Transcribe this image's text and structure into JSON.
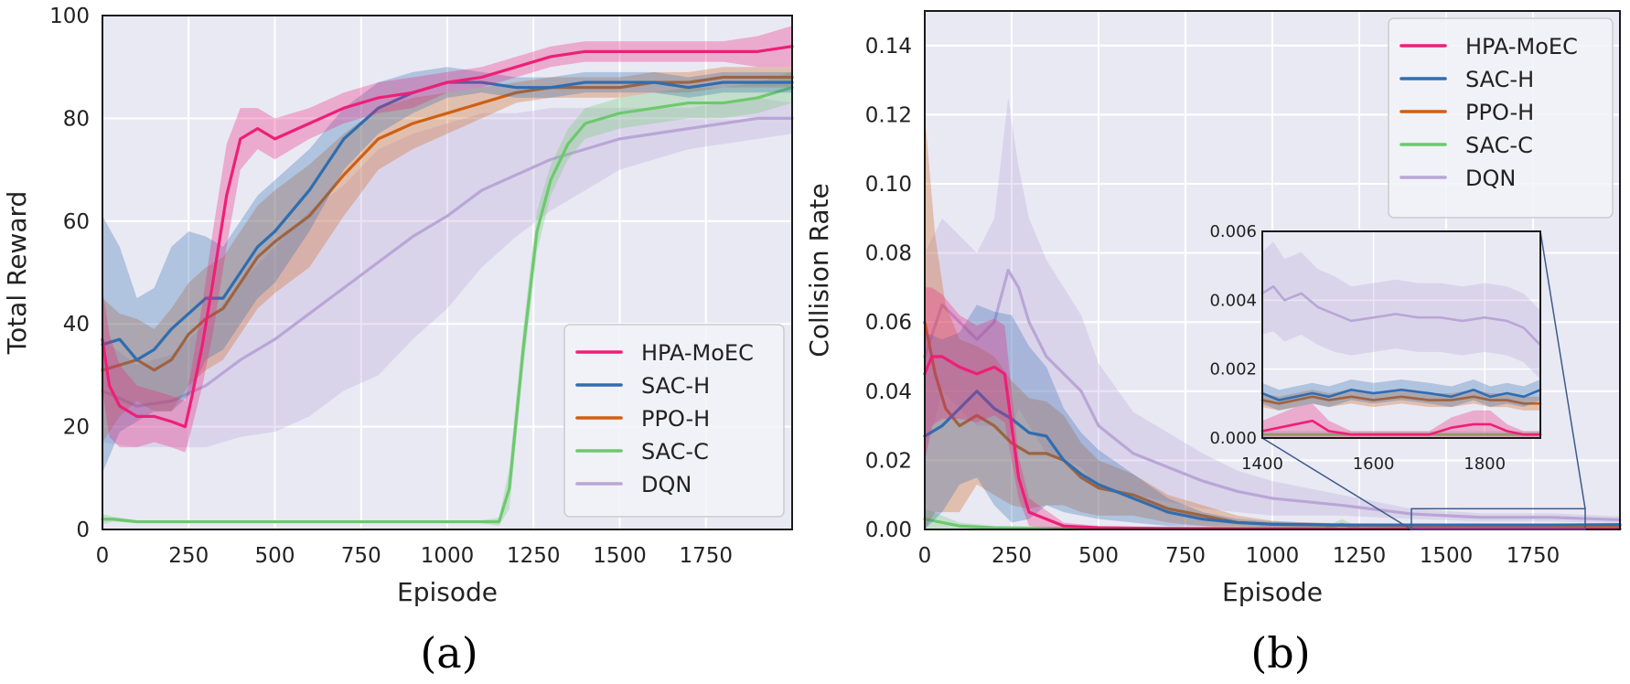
{
  "captions": [
    "(a)",
    "(b)"
  ],
  "colors": {
    "HPA-MoEC": "#ee1f77",
    "SAC-H": "#2f6db0",
    "PPO-H": "#cf5f12",
    "SAC-C": "#6cc96c",
    "DQN": "#b9a6d6",
    "panel_bg": "#e9e9f4",
    "grid": "#ffffff"
  },
  "chart_data": [
    {
      "type": "line",
      "xlabel": "Episode",
      "ylabel": "Total Reward",
      "xlim": [
        0,
        2000
      ],
      "ylim": [
        0,
        100
      ],
      "xticks": [
        0,
        250,
        500,
        750,
        1000,
        1250,
        1500,
        1750
      ],
      "yticks": [
        0,
        20,
        40,
        60,
        80,
        100
      ],
      "ytick_labels": [
        "0",
        "20",
        "40",
        "60",
        "80",
        "100"
      ],
      "grid": true,
      "legend_position": "lower-right",
      "series": [
        {
          "name": "HPA-MoEC",
          "x": [
            0,
            20,
            50,
            100,
            150,
            200,
            240,
            260,
            290,
            320,
            360,
            400,
            450,
            500,
            600,
            700,
            800,
            900,
            1000,
            1100,
            1200,
            1300,
            1400,
            1500,
            1600,
            1700,
            1800,
            1900,
            2000
          ],
          "y": [
            37,
            28,
            24,
            22,
            22,
            21,
            20,
            26,
            36,
            48,
            65,
            76,
            78,
            76,
            79,
            82,
            84,
            85,
            87,
            88,
            90,
            92,
            93,
            93,
            93,
            93,
            93,
            93,
            94
          ],
          "band": [
            10,
            10,
            8,
            6,
            5,
            5,
            5,
            6,
            8,
            10,
            10,
            6,
            4,
            4,
            3,
            3,
            3,
            3,
            2,
            2,
            2,
            2,
            2,
            2,
            2,
            2,
            2,
            3,
            4
          ]
        },
        {
          "name": "SAC-H",
          "x": [
            0,
            50,
            100,
            150,
            200,
            250,
            300,
            350,
            400,
            450,
            500,
            600,
            700,
            800,
            900,
            1000,
            1100,
            1200,
            1300,
            1400,
            1500,
            1600,
            1700,
            1800,
            1900,
            2000
          ],
          "y": [
            36,
            37,
            33,
            35,
            39,
            42,
            45,
            45,
            50,
            55,
            58,
            66,
            76,
            82,
            85,
            87,
            87,
            86,
            86,
            87,
            87,
            87,
            86,
            87,
            87,
            87
          ],
          "band": [
            25,
            18,
            12,
            12,
            16,
            16,
            12,
            10,
            10,
            10,
            10,
            8,
            6,
            5,
            4,
            3,
            2,
            2,
            2,
            2,
            2,
            2,
            2,
            2,
            2,
            2
          ]
        },
        {
          "name": "PPO-H",
          "x": [
            0,
            50,
            100,
            150,
            200,
            250,
            300,
            350,
            400,
            450,
            500,
            600,
            700,
            800,
            900,
            1000,
            1100,
            1200,
            1300,
            1400,
            1500,
            1600,
            1700,
            1800,
            1900,
            2000
          ],
          "y": [
            31,
            32,
            33,
            31,
            33,
            38,
            41,
            43,
            48,
            53,
            56,
            61,
            69,
            76,
            79,
            81,
            83,
            85,
            86,
            86,
            86,
            87,
            87,
            88,
            88,
            88
          ],
          "band": [
            14,
            10,
            8,
            8,
            10,
            10,
            10,
            10,
            10,
            10,
            10,
            10,
            8,
            6,
            5,
            4,
            3,
            2,
            2,
            2,
            2,
            2,
            2,
            2,
            2,
            2
          ]
        },
        {
          "name": "SAC-C",
          "x": [
            0,
            30,
            100,
            300,
            600,
            900,
            1100,
            1150,
            1180,
            1220,
            1260,
            1300,
            1350,
            1400,
            1450,
            1500,
            1600,
            1700,
            1800,
            1900,
            2000
          ],
          "y": [
            2,
            2,
            1.5,
            1.5,
            1.5,
            1.5,
            1.5,
            1.5,
            8,
            35,
            58,
            68,
            75,
            79,
            80,
            81,
            82,
            83,
            83,
            84,
            86
          ],
          "band": [
            1,
            0.5,
            0.3,
            0.3,
            0.3,
            0.3,
            0.3,
            0.8,
            4,
            4,
            4,
            3,
            3,
            3,
            3,
            3,
            3,
            3,
            3,
            3,
            3
          ]
        },
        {
          "name": "DQN",
          "x": [
            0,
            100,
            200,
            300,
            400,
            500,
            600,
            700,
            800,
            900,
            1000,
            1100,
            1200,
            1300,
            1400,
            1500,
            1600,
            1700,
            1800,
            1900,
            2000
          ],
          "y": [
            27,
            24,
            25,
            28,
            33,
            37,
            42,
            47,
            52,
            57,
            61,
            66,
            69,
            72,
            74,
            76,
            77,
            78,
            79,
            80,
            80
          ],
          "band": [
            10,
            8,
            9,
            12,
            15,
            18,
            20,
            20,
            22,
            20,
            18,
            15,
            12,
            10,
            8,
            6,
            5,
            4,
            4,
            4,
            3
          ]
        }
      ]
    },
    {
      "type": "line",
      "xlabel": "Episode",
      "ylabel": "Collision Rate",
      "xlim": [
        0,
        2000
      ],
      "ylim": [
        0,
        0.15
      ],
      "xticks": [
        0,
        250,
        500,
        750,
        1000,
        1250,
        1500,
        1750
      ],
      "yticks": [
        0,
        0.02,
        0.04,
        0.06,
        0.08,
        0.1,
        0.12,
        0.14
      ],
      "ytick_labels": [
        "0.00",
        "0.02",
        "0.04",
        "0.06",
        "0.08",
        "0.10",
        "0.12",
        "0.14"
      ],
      "grid": true,
      "legend_position": "upper-right",
      "series": [
        {
          "name": "HPA-MoEC",
          "x": [
            0,
            20,
            50,
            100,
            150,
            200,
            230,
            250,
            270,
            300,
            400,
            500,
            700,
            1000,
            1300,
            1600,
            2000
          ],
          "y": [
            0.045,
            0.05,
            0.05,
            0.047,
            0.045,
            0.047,
            0.045,
            0.03,
            0.015,
            0.005,
            0.001,
            0.0005,
            0.0003,
            0.0002,
            0.0002,
            0.0002,
            0.0002
          ],
          "band": [
            0.025,
            0.02,
            0.018,
            0.015,
            0.014,
            0.014,
            0.014,
            0.01,
            0.006,
            0.004,
            0.001,
            0.0005,
            0.0003,
            0.0002,
            0.0002,
            0.0002,
            0.0002
          ]
        },
        {
          "name": "SAC-H",
          "x": [
            0,
            50,
            100,
            150,
            200,
            250,
            300,
            350,
            400,
            450,
            500,
            600,
            700,
            800,
            900,
            1000,
            1200,
            1400,
            1600,
            1800,
            2000
          ],
          "y": [
            0.027,
            0.03,
            0.035,
            0.04,
            0.035,
            0.032,
            0.028,
            0.027,
            0.02,
            0.016,
            0.013,
            0.009,
            0.005,
            0.003,
            0.002,
            0.0015,
            0.0013,
            0.0013,
            0.0013,
            0.0013,
            0.0014
          ],
          "band": [
            0.03,
            0.025,
            0.022,
            0.025,
            0.028,
            0.03,
            0.025,
            0.02,
            0.015,
            0.012,
            0.01,
            0.007,
            0.004,
            0.002,
            0.001,
            0.0008,
            0.0005,
            0.0004,
            0.0004,
            0.0004,
            0.0004
          ]
        },
        {
          "name": "PPO-H",
          "x": [
            0,
            30,
            60,
            100,
            150,
            200,
            250,
            300,
            350,
            400,
            450,
            500,
            600,
            700,
            800,
            900,
            1000,
            1200,
            1400,
            1600,
            1800,
            2000
          ],
          "y": [
            0.06,
            0.045,
            0.035,
            0.03,
            0.033,
            0.03,
            0.025,
            0.022,
            0.022,
            0.02,
            0.015,
            0.012,
            0.01,
            0.006,
            0.004,
            0.002,
            0.0015,
            0.0012,
            0.0011,
            0.0011,
            0.0011,
            0.0011
          ],
          "band": [
            0.06,
            0.04,
            0.03,
            0.025,
            0.02,
            0.02,
            0.018,
            0.016,
            0.015,
            0.013,
            0.01,
            0.008,
            0.006,
            0.004,
            0.003,
            0.002,
            0.001,
            0.0004,
            0.0003,
            0.0003,
            0.0003,
            0.0003
          ]
        },
        {
          "name": "SAC-C",
          "x": [
            0,
            100,
            200,
            400,
            600,
            800,
            1000,
            1150,
            1200,
            1250,
            1400,
            1600,
            1800,
            2000
          ],
          "y": [
            0.003,
            0.001,
            0.0005,
            0.0003,
            0.0003,
            0.0003,
            0.0003,
            0.0003,
            0.0015,
            0.0003,
            0.0002,
            0.0002,
            0.0002,
            0.0002
          ],
          "band": [
            0.003,
            0.001,
            0.0005,
            0.0003,
            0.0003,
            0.0003,
            0.0003,
            0.0003,
            0.0015,
            0.0003,
            0.0002,
            0.0002,
            0.0002,
            0.0002
          ]
        },
        {
          "name": "DQN",
          "x": [
            0,
            50,
            100,
            150,
            200,
            240,
            270,
            300,
            350,
            400,
            450,
            500,
            600,
            700,
            800,
            900,
            1000,
            1200,
            1400,
            1600,
            1800,
            2000
          ],
          "y": [
            0.05,
            0.065,
            0.06,
            0.055,
            0.06,
            0.075,
            0.07,
            0.06,
            0.05,
            0.045,
            0.04,
            0.03,
            0.022,
            0.018,
            0.014,
            0.011,
            0.009,
            0.007,
            0.0045,
            0.0035,
            0.0035,
            0.0028
          ],
          "band": [
            0.03,
            0.025,
            0.025,
            0.025,
            0.03,
            0.05,
            0.035,
            0.03,
            0.028,
            0.025,
            0.022,
            0.018,
            0.012,
            0.01,
            0.008,
            0.006,
            0.005,
            0.003,
            0.0015,
            0.0012,
            0.0012,
            0.001
          ]
        }
      ],
      "inset": {
        "xlim": [
          1400,
          1900
        ],
        "ylim": [
          0,
          0.006
        ],
        "xticks": [
          1400,
          1600,
          1800
        ],
        "yticks": [
          0,
          0.002,
          0.004,
          0.006
        ],
        "ytick_labels": [
          "0.000",
          "0.002",
          "0.004",
          "0.006"
        ],
        "series": [
          {
            "name": "HPA-MoEC",
            "x": [
              1400,
              1430,
              1460,
              1490,
              1520,
              1560,
              1600,
              1650,
              1700,
              1740,
              1780,
              1810,
              1840,
              1870,
              1900
            ],
            "y": [
              0.0002,
              0.0003,
              0.0004,
              0.0005,
              0.0002,
              0.0001,
              0.0001,
              0.0001,
              0.0001,
              0.0003,
              0.0004,
              0.0004,
              0.0002,
              0.0001,
              0.0001
            ],
            "band": [
              0.0003,
              0.0004,
              0.0005,
              0.0005,
              0.0003,
              0.0001,
              0.0001,
              0.0001,
              0.0001,
              0.0003,
              0.0004,
              0.0004,
              0.0002,
              0.0001,
              0.0001
            ]
          },
          {
            "name": "SAC-H",
            "x": [
              1400,
              1430,
              1460,
              1490,
              1520,
              1560,
              1600,
              1650,
              1700,
              1740,
              1780,
              1810,
              1840,
              1870,
              1900
            ],
            "y": [
              0.0013,
              0.0011,
              0.0012,
              0.0013,
              0.0012,
              0.0014,
              0.0013,
              0.0014,
              0.0013,
              0.0012,
              0.0014,
              0.0012,
              0.0013,
              0.0012,
              0.0014
            ],
            "band": [
              0.0003,
              0.0003,
              0.0003,
              0.0003,
              0.0003,
              0.0003,
              0.0003,
              0.0003,
              0.0003,
              0.0003,
              0.0003,
              0.0003,
              0.0003,
              0.0003,
              0.0003
            ]
          },
          {
            "name": "PPO-H",
            "x": [
              1400,
              1430,
              1460,
              1490,
              1520,
              1560,
              1600,
              1650,
              1700,
              1740,
              1780,
              1810,
              1840,
              1870,
              1900
            ],
            "y": [
              0.0011,
              0.001,
              0.0011,
              0.0012,
              0.0011,
              0.0012,
              0.0011,
              0.0012,
              0.0011,
              0.0011,
              0.0012,
              0.0011,
              0.0011,
              0.001,
              0.001
            ],
            "band": [
              0.0002,
              0.0002,
              0.0002,
              0.0002,
              0.0002,
              0.0002,
              0.0002,
              0.0002,
              0.0002,
              0.0002,
              0.0002,
              0.0002,
              0.0002,
              0.0002,
              0.0002
            ]
          },
          {
            "name": "SAC-C",
            "x": [
              1400,
              1500,
              1600,
              1700,
              1800,
              1900
            ],
            "y": [
              0.0001,
              0.0001,
              0.0001,
              0.0001,
              0.0001,
              0.0001
            ],
            "band": [
              0.0001,
              0.0001,
              0.0001,
              0.0001,
              0.0001,
              0.0001
            ]
          },
          {
            "name": "DQN",
            "x": [
              1400,
              1420,
              1440,
              1470,
              1500,
              1530,
              1560,
              1600,
              1640,
              1680,
              1720,
              1760,
              1800,
              1840,
              1870,
              1900
            ],
            "y": [
              0.0042,
              0.0044,
              0.004,
              0.0042,
              0.0038,
              0.0036,
              0.0034,
              0.0035,
              0.0036,
              0.0035,
              0.0035,
              0.0034,
              0.0035,
              0.0034,
              0.0032,
              0.0027
            ],
            "band": [
              0.0012,
              0.0013,
              0.0012,
              0.0012,
              0.0011,
              0.0011,
              0.001,
              0.001,
              0.001,
              0.001,
              0.001,
              0.001,
              0.001,
              0.001,
              0.001,
              0.001
            ]
          }
        ]
      }
    }
  ]
}
